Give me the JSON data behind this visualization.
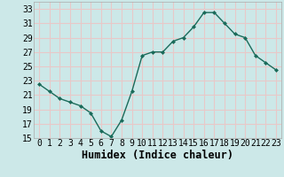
{
  "x": [
    0,
    1,
    2,
    3,
    4,
    5,
    6,
    7,
    8,
    9,
    10,
    11,
    12,
    13,
    14,
    15,
    16,
    17,
    18,
    19,
    20,
    21,
    22,
    23
  ],
  "y": [
    22.5,
    21.5,
    20.5,
    20.0,
    19.5,
    18.5,
    16.0,
    15.2,
    17.5,
    21.5,
    26.5,
    27.0,
    27.0,
    28.5,
    29.0,
    30.5,
    32.5,
    32.5,
    31.0,
    29.5,
    29.0,
    26.5,
    25.5,
    24.5
  ],
  "line_color": "#1a6b5a",
  "marker": "D",
  "marker_size": 2.0,
  "bg_color": "#cce8e8",
  "grid_color": "#e8c8c8",
  "title": "",
  "xlabel": "Humidex (Indice chaleur)",
  "ylabel": "",
  "xlim": [
    -0.5,
    23.5
  ],
  "ylim": [
    15,
    34
  ],
  "yticks": [
    15,
    17,
    19,
    21,
    23,
    25,
    27,
    29,
    31,
    33
  ],
  "xtick_labels": [
    "0",
    "1",
    "2",
    "3",
    "4",
    "5",
    "6",
    "7",
    "8",
    "9",
    "10",
    "11",
    "12",
    "13",
    "14",
    "15",
    "16",
    "17",
    "18",
    "19",
    "20",
    "21",
    "22",
    "23"
  ],
  "xlabel_fontsize": 8.5,
  "tick_fontsize": 7.0
}
